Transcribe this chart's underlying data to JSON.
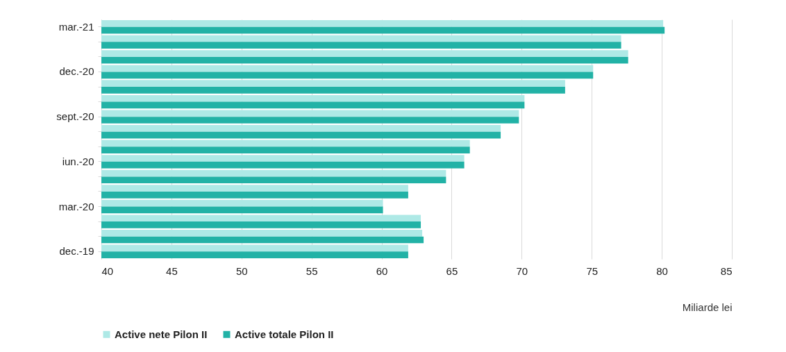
{
  "chart_data": {
    "type": "bar",
    "orientation": "horizontal",
    "xlabel": "Miliarde lei",
    "categories": [
      "mar.-21",
      null,
      null,
      "dec.-20",
      null,
      null,
      "sept.-20",
      null,
      null,
      "iun.-20",
      null,
      null,
      "mar.-20",
      null,
      null,
      "dec.-19"
    ],
    "series": [
      {
        "name": "Active nete Pilon II",
        "color": "#aee9e6",
        "values": [
          80.1,
          77.1,
          77.6,
          75.1,
          73.1,
          70.2,
          69.8,
          68.5,
          66.3,
          65.9,
          64.6,
          61.9,
          60.1,
          62.8,
          62.9,
          61.9
        ]
      },
      {
        "name": "Active totale Pilon II",
        "color": "#22b2a6",
        "values": [
          80.2,
          77.1,
          77.6,
          75.1,
          73.1,
          70.2,
          69.8,
          68.5,
          66.3,
          65.9,
          64.6,
          61.9,
          60.1,
          62.8,
          63.0,
          61.9
        ]
      }
    ],
    "xlim": [
      40,
      85
    ],
    "xticks": [
      40,
      45,
      50,
      55,
      60,
      65,
      70,
      75,
      80,
      85
    ],
    "grid": "x",
    "legend": "bottom"
  }
}
